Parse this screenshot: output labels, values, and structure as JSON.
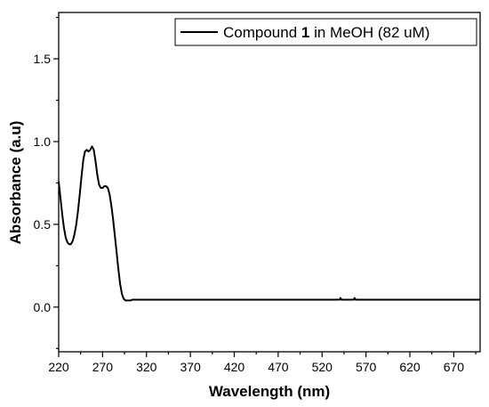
{
  "chart_data": {
    "type": "line",
    "xlabel": "Wavelength (nm)",
    "ylabel": "Absorbance (a.u)",
    "xlim": [
      220,
      700
    ],
    "ylim": [
      -0.27,
      1.78
    ],
    "x_ticks": [
      220,
      270,
      320,
      370,
      420,
      470,
      520,
      570,
      620,
      670
    ],
    "y_ticks": [
      0.0,
      0.5,
      1.0,
      1.5
    ],
    "y_tick_labels": [
      "0.0",
      "0.5",
      "1.0",
      "1.5"
    ],
    "grid": false,
    "legend": {
      "placement": "top-right",
      "label_parts": [
        "Compound ",
        "1",
        " in MeOH (82 uM)"
      ]
    },
    "series": [
      {
        "name": "Compound 1 in MeOH (82 uM)",
        "color": "#000000",
        "x": [
          220,
          222,
          224,
          226,
          228,
          230,
          232,
          234,
          236,
          238,
          240,
          242,
          244,
          246,
          248,
          250,
          252,
          254,
          256,
          258,
          260,
          262,
          264,
          266,
          268,
          270,
          272,
          274,
          276,
          278,
          280,
          282,
          284,
          286,
          288,
          290,
          292,
          294,
          296,
          298,
          300,
          302,
          304,
          306,
          308,
          310,
          312,
          316,
          320,
          330,
          340,
          360,
          400,
          450,
          500,
          540,
          541,
          542,
          550,
          556,
          557,
          558,
          600,
          650,
          690,
          700
        ],
        "y": [
          0.76,
          0.66,
          0.56,
          0.48,
          0.42,
          0.39,
          0.38,
          0.38,
          0.4,
          0.44,
          0.5,
          0.58,
          0.68,
          0.79,
          0.89,
          0.94,
          0.95,
          0.94,
          0.95,
          0.97,
          0.95,
          0.88,
          0.8,
          0.74,
          0.72,
          0.72,
          0.73,
          0.73,
          0.72,
          0.68,
          0.61,
          0.53,
          0.43,
          0.33,
          0.23,
          0.14,
          0.08,
          0.05,
          0.04,
          0.04,
          0.04,
          0.04,
          0.045,
          0.045,
          0.045,
          0.045,
          0.045,
          0.045,
          0.045,
          0.045,
          0.045,
          0.045,
          0.045,
          0.045,
          0.045,
          0.045,
          0.055,
          0.045,
          0.045,
          0.045,
          0.055,
          0.045,
          0.045,
          0.045,
          0.045,
          0.045
        ]
      }
    ]
  }
}
